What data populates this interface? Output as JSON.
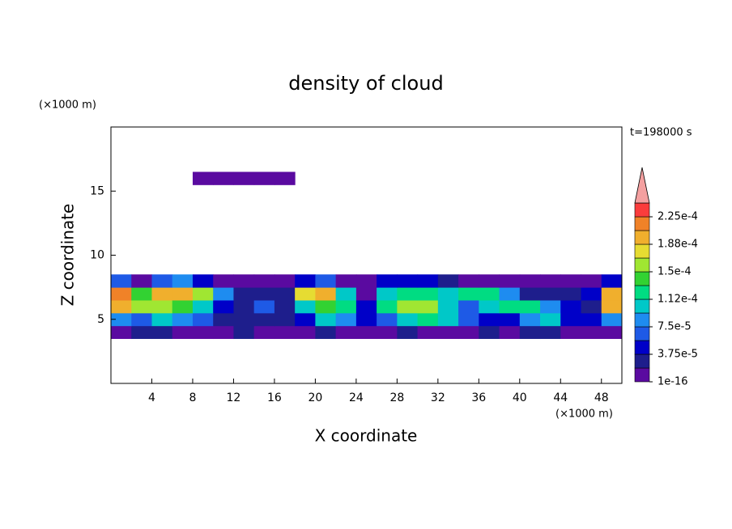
{
  "chart_data": {
    "type": "contour",
    "title": "density of cloud",
    "xlabel": "X coordinate",
    "ylabel": "Z coordinate",
    "x_unit": "(×1000 m)",
    "y_unit": "(×1000 m)",
    "annotation": "t=198000 s",
    "xlim": [
      0,
      50
    ],
    "ylim": [
      0,
      20
    ],
    "xticks": [
      4,
      8,
      12,
      16,
      20,
      24,
      28,
      32,
      36,
      40,
      44,
      48
    ],
    "yticks": [
      5,
      10,
      15
    ],
    "x_edges": [
      0,
      2,
      4,
      6,
      8,
      10,
      12,
      14,
      16,
      18,
      20,
      22,
      24,
      26,
      28,
      30,
      32,
      34,
      36,
      38,
      40,
      42,
      44,
      46,
      48,
      50
    ],
    "z_edges": [
      3.5,
      4.5,
      5.5,
      6.5,
      7.5,
      8.5,
      15.5,
      16.5
    ],
    "z": [
      [
        1e-06,
        2e-05,
        2e-05,
        1e-06,
        1e-06,
        1e-06,
        2e-05,
        1e-06,
        1e-06,
        1e-06,
        2e-05,
        1e-06,
        1e-06,
        1e-06,
        2e-05,
        1e-06,
        1e-06,
        1e-06,
        2e-05,
        1e-06,
        2e-05,
        2e-05,
        1e-06,
        1e-06,
        1e-06
      ],
      [
        9e-05,
        7e-05,
        0.0001,
        8e-05,
        6e-05,
        3e-05,
        2e-05,
        2e-05,
        3e-05,
        4e-05,
        0.0001,
        9e-05,
        5e-05,
        7e-05,
        0.00011,
        0.00012,
        0.0001,
        7e-05,
        4e-05,
        5e-05,
        9e-05,
        0.0001,
        5e-05,
        4e-05,
        8e-05
      ],
      [
        0.00019,
        0.00015,
        0.00016,
        0.00014,
        0.00011,
        4e-05,
        3e-05,
        7e-05,
        2e-05,
        0.0001,
        0.00014,
        0.00013,
        5e-05,
        0.00013,
        0.00015,
        0.00015,
        0.00011,
        6e-05,
        0.00011,
        0.00013,
        0.00012,
        8e-05,
        4e-05,
        3e-05,
        0.00019
      ],
      [
        0.00021,
        0.00014,
        0.0002,
        0.0002,
        0.00016,
        9e-05,
        2e-05,
        2e-05,
        2e-05,
        0.00018,
        0.0002,
        0.00011,
        1e-05,
        0.0001,
        0.00013,
        0.00013,
        0.00011,
        0.00013,
        0.00013,
        9e-05,
        3e-05,
        2e-05,
        3e-05,
        5e-05,
        0.0002
      ],
      [
        6e-05,
        1e-06,
        7e-05,
        8e-05,
        5e-05,
        1e-06,
        1e-06,
        1e-06,
        1e-06,
        5e-05,
        6e-05,
        1e-06,
        1e-06,
        4e-05,
        5e-05,
        4e-05,
        3e-05,
        1e-06,
        1e-06,
        1e-06,
        1e-06,
        1e-06,
        1e-06,
        1e-06,
        4e-05
      ],
      [
        null,
        null,
        null,
        null,
        null,
        null,
        null,
        null,
        null,
        null,
        null,
        null,
        null,
        null,
        null,
        null,
        null,
        null,
        null,
        null,
        null,
        null,
        null,
        null,
        null
      ],
      [
        null,
        null,
        null,
        null,
        1e-06,
        1e-06,
        1e-06,
        1e-06,
        1e-06,
        null,
        null,
        null,
        null,
        null,
        null,
        null,
        null,
        null,
        null,
        null,
        null,
        null,
        null,
        null,
        null
      ]
    ],
    "levels": [
      1e-16,
      1.875e-05,
      3.75e-05,
      5.625e-05,
      7.5e-05,
      9.375e-05,
      0.0001125,
      0.00013125,
      0.00015,
      0.00016875,
      0.0001875,
      0.00020625,
      0.000225,
      0.00024375
    ],
    "colors": [
      "#5a0aa0",
      "#1e1e8c",
      "#0000c8",
      "#1e5ae6",
      "#1e8cf0",
      "#00c8c8",
      "#00dc82",
      "#32d232",
      "#a0e632",
      "#e6dc32",
      "#f0af2d",
      "#f08228",
      "#fa3c3c"
    ],
    "extend_color": "#f4a0a0",
    "cbar_ticks": [
      {
        "value": 1e-16,
        "label": "1e-16"
      },
      {
        "value": 3.75e-05,
        "label": "3.75e-5"
      },
      {
        "value": 7.5e-05,
        "label": "7.5e-5"
      },
      {
        "value": 0.0001125,
        "label": "1.12e-4"
      },
      {
        "value": 0.00015,
        "label": "1.5e-4"
      },
      {
        "value": 0.0001875,
        "label": "1.88e-4"
      },
      {
        "value": 0.000225,
        "label": "2.25e-4"
      }
    ]
  }
}
